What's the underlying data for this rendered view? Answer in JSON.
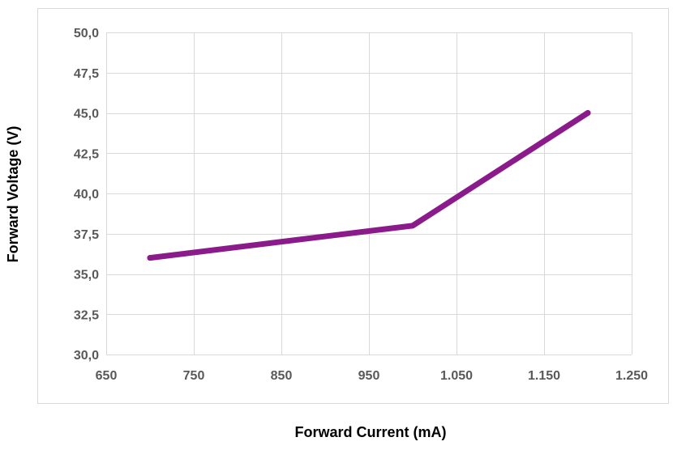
{
  "chart_data": {
    "type": "line",
    "title": "",
    "xlabel": "Forward Current (mA)",
    "ylabel": "Forward Voltage (V)",
    "xlim": [
      650,
      1250
    ],
    "ylim": [
      30.0,
      50.0
    ],
    "x_ticks": [
      650,
      750,
      850,
      950,
      1050,
      1150,
      1250
    ],
    "x_tick_labels": [
      "650",
      "750",
      "850",
      "950",
      "1.050",
      "1.150",
      "1.250"
    ],
    "y_ticks": [
      30.0,
      32.5,
      35.0,
      37.5,
      40.0,
      42.5,
      45.0,
      47.5,
      50.0
    ],
    "y_tick_labels": [
      "30,0",
      "32,5",
      "35,0",
      "37,5",
      "40,0",
      "42,5",
      "45,0",
      "47,5",
      "50,0"
    ],
    "grid": true,
    "legend": "none",
    "series": [
      {
        "color": "#8b1a8b",
        "x": [
          700,
          1000,
          1200
        ],
        "y": [
          36.0,
          38.0,
          45.0
        ]
      }
    ]
  }
}
